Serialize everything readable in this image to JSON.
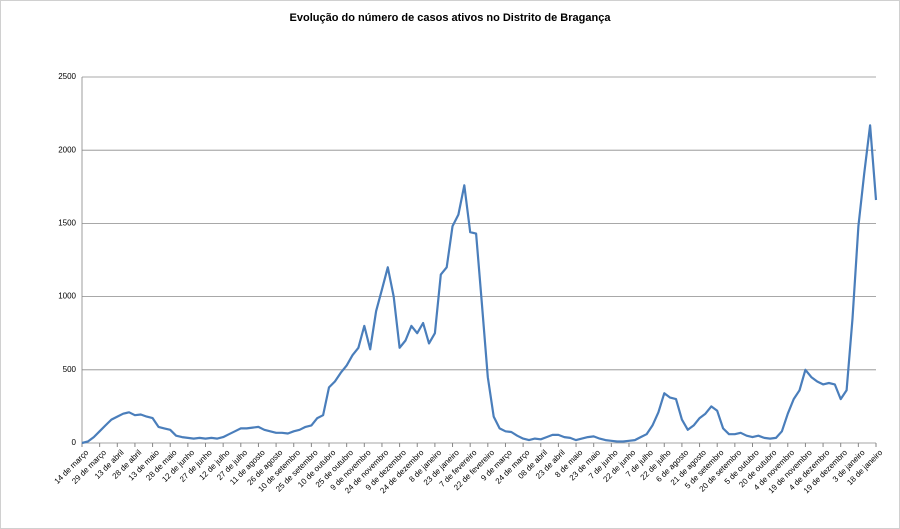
{
  "chart_data": {
    "type": "line",
    "title": "Evolução do número de casos ativos no Distrito de Bragança",
    "categories": [
      "14 de março",
      null,
      null,
      "29 de março",
      null,
      null,
      "13 de abril",
      null,
      null,
      "28 de abril",
      null,
      null,
      "13 de maio",
      null,
      null,
      "28 de maio",
      null,
      null,
      "12 de junho",
      null,
      null,
      "27 de junho",
      null,
      null,
      "12 de julho",
      null,
      null,
      "27 de julho",
      null,
      null,
      "11 de agosto",
      null,
      null,
      "26 de agosto",
      null,
      null,
      "10 de setembro",
      null,
      null,
      "25 de setembro",
      null,
      null,
      "10 de outubro",
      null,
      null,
      "25 de outubro",
      null,
      null,
      "9 de novembro",
      null,
      null,
      "24 de novembro",
      null,
      null,
      "9 de dezembro",
      null,
      null,
      "24 de dezembro",
      null,
      null,
      "8 de janeiro",
      null,
      null,
      "23 de janeiro",
      null,
      null,
      "7 de fevereiro",
      null,
      null,
      "22 de fevereiro",
      null,
      null,
      "9 de março",
      null,
      null,
      "24 de março",
      null,
      null,
      "08 de abril",
      null,
      null,
      "23 de abril",
      null,
      null,
      "8 de maio",
      null,
      null,
      "23 de maio",
      null,
      null,
      "7 de junho",
      null,
      null,
      "22 de junho",
      null,
      null,
      "7 de julho",
      null,
      null,
      "22 de julho",
      null,
      null,
      "6 de agosto",
      null,
      null,
      "21 de agosto",
      null,
      null,
      "5 de setembro",
      null,
      null,
      "20 de setembro",
      null,
      null,
      "5 de outubro",
      null,
      null,
      "20 de outubro",
      null,
      null,
      "4 de novembro",
      null,
      null,
      "19 de novembro",
      null,
      null,
      "4 de dezembro",
      null,
      null,
      "19 de dezembro",
      null,
      null,
      "3 de janeiro",
      null,
      null,
      "18 de janeiro"
    ],
    "values": [
      0,
      10,
      40,
      80,
      120,
      160,
      180,
      200,
      210,
      190,
      195,
      180,
      170,
      110,
      100,
      90,
      50,
      40,
      35,
      30,
      35,
      30,
      35,
      30,
      40,
      60,
      80,
      100,
      100,
      105,
      110,
      90,
      80,
      70,
      70,
      65,
      80,
      90,
      110,
      120,
      170,
      190,
      380,
      420,
      480,
      530,
      600,
      650,
      800,
      640,
      900,
      1050,
      1200,
      1000,
      650,
      700,
      800,
      750,
      820,
      680,
      750,
      1150,
      1200,
      1480,
      1560,
      1760,
      1440,
      1430,
      950,
      450,
      180,
      100,
      80,
      75,
      50,
      30,
      20,
      30,
      25,
      40,
      55,
      55,
      40,
      35,
      20,
      30,
      40,
      45,
      30,
      20,
      15,
      10,
      10,
      15,
      20,
      40,
      60,
      120,
      210,
      340,
      310,
      300,
      160,
      90,
      120,
      170,
      200,
      250,
      220,
      100,
      60,
      60,
      70,
      50,
      40,
      50,
      35,
      30,
      35,
      80,
      200,
      300,
      360,
      500,
      450,
      420,
      400,
      410,
      400,
      300,
      360,
      850,
      1480,
      1840,
      2170,
      1660
    ],
    "color": "#4a7ebb",
    "ylim": [
      0,
      2500
    ],
    "yticks": [
      0,
      500,
      1000,
      1500,
      2000,
      2500
    ],
    "grid": true
  }
}
